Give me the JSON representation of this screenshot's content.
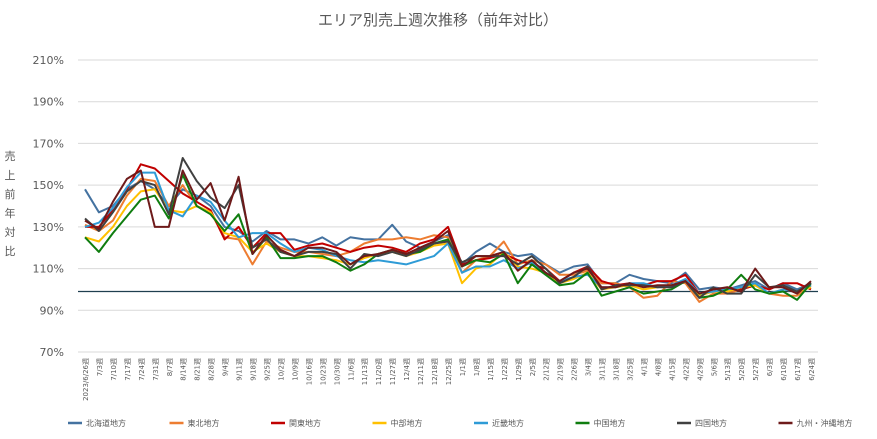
{
  "chart_data": {
    "type": "line",
    "title": "エリア別売上週次推移（前年対比）",
    "ylabel": "売上前年対比",
    "ylim": [
      70,
      210
    ],
    "yticks": [
      "70%",
      "90%",
      "110%",
      "130%",
      "150%",
      "170%",
      "190%",
      "210%"
    ],
    "grid": "horizontal",
    "legend": "bottom",
    "reference_line": {
      "value": 99,
      "color": "#1f3f4f"
    },
    "categories": [
      "2023/6/26週",
      "7/3週",
      "7/10週",
      "7/17週",
      "7/24週",
      "7/31週",
      "8/7週",
      "8/14週",
      "8/21週",
      "8/28週",
      "9/4週",
      "9/11週",
      "9/18週",
      "9/25週",
      "10/2週",
      "10/9週",
      "10/16週",
      "10/23週",
      "10/30週",
      "11/6週",
      "11/13週",
      "11/20週",
      "11/27週",
      "12/4週",
      "12/11週",
      "12/18週",
      "12/25週",
      "1/1週",
      "1/8週",
      "1/15週",
      "1/22週",
      "1/29週",
      "2/5週",
      "2/12週",
      "2/19週",
      "2/26週",
      "3/4週",
      "3/11週",
      "3/18週",
      "3/25週",
      "4/1週",
      "4/8週",
      "4/15週",
      "4/22週",
      "4/29週",
      "5/6週",
      "5/13週",
      "5/20週",
      "5/27週",
      "6/3週",
      "6/10週",
      "6/17週",
      "6/24週"
    ],
    "series": [
      {
        "name": "北海道地方",
        "color": "#4472a0",
        "values": [
          148,
          137,
          140,
          148,
          152,
          148,
          140,
          148,
          145,
          140,
          130,
          128,
          123,
          128,
          124,
          124,
          122,
          125,
          121,
          125,
          124,
          124,
          131,
          123,
          120,
          123,
          126,
          112,
          118,
          122,
          118,
          116,
          117,
          112,
          108,
          111,
          112,
          103,
          103,
          107,
          105,
          104,
          103,
          108,
          100,
          101,
          100,
          102,
          104,
          100,
          103,
          100,
          103
        ]
      },
      {
        "name": "東北地方",
        "color": "#ed7d31",
        "values": [
          131,
          128,
          133,
          145,
          153,
          152,
          140,
          150,
          140,
          137,
          125,
          124,
          112,
          123,
          120,
          118,
          118,
          117,
          116,
          118,
          122,
          124,
          124,
          125,
          124,
          126,
          125,
          108,
          114,
          116,
          123,
          112,
          114,
          112,
          107,
          107,
          109,
          103,
          103,
          101,
          96,
          97,
          104,
          103,
          94,
          98,
          98,
          100,
          102,
          98,
          97,
          97,
          102
        ]
      },
      {
        "name": "関東地方",
        "color": "#c00000",
        "values": [
          130,
          130,
          138,
          148,
          160,
          158,
          152,
          146,
          142,
          138,
          124,
          130,
          120,
          127,
          127,
          119,
          121,
          122,
          120,
          118,
          120,
          121,
          120,
          118,
          122,
          124,
          130,
          112,
          114,
          115,
          117,
          114,
          112,
          110,
          104,
          108,
          111,
          104,
          102,
          103,
          102,
          104,
          104,
          107,
          98,
          99,
          101,
          100,
          102,
          100,
          103,
          103,
          100
        ]
      },
      {
        "name": "中部地方",
        "color": "#ffc000",
        "values": [
          125,
          123,
          130,
          140,
          147,
          148,
          138,
          137,
          140,
          137,
          127,
          125,
          118,
          122,
          118,
          116,
          116,
          115,
          114,
          112,
          115,
          117,
          118,
          116,
          118,
          121,
          122,
          103,
          110,
          112,
          118,
          111,
          110,
          108,
          103,
          105,
          108,
          100,
          101,
          102,
          100,
          101,
          102,
          104,
          97,
          99,
          99,
          101,
          102,
          98,
          100,
          99,
          101
        ]
      },
      {
        "name": "近畿地方",
        "color": "#2e9bd6",
        "values": [
          130,
          132,
          139,
          149,
          156,
          156,
          138,
          135,
          145,
          142,
          133,
          125,
          127,
          127,
          122,
          118,
          120,
          119,
          116,
          114,
          113,
          114,
          113,
          112,
          114,
          116,
          122,
          108,
          111,
          111,
          114,
          110,
          113,
          108,
          104,
          106,
          107,
          101,
          101,
          103,
          103,
          101,
          102,
          105,
          98,
          99,
          100,
          101,
          103,
          98,
          100,
          99,
          102
        ]
      },
      {
        "name": "中国地方",
        "color": "#0f7d0f",
        "values": [
          125,
          118,
          127,
          135,
          143,
          145,
          134,
          155,
          140,
          136,
          128,
          136,
          117,
          125,
          115,
          115,
          116,
          116,
          113,
          109,
          112,
          117,
          119,
          117,
          118,
          122,
          124,
          111,
          114,
          113,
          117,
          103,
          112,
          107,
          102,
          103,
          108,
          97,
          99,
          101,
          98,
          99,
          100,
          104,
          96,
          97,
          100,
          107,
          100,
          98,
          99,
          95,
          103
        ]
      },
      {
        "name": "四国地方",
        "color": "#404040",
        "values": [
          134,
          128,
          137,
          147,
          152,
          150,
          136,
          163,
          152,
          144,
          139,
          150,
          120,
          124,
          118,
          116,
          118,
          118,
          117,
          110,
          117,
          116,
          118,
          116,
          119,
          122,
          123,
          113,
          116,
          116,
          116,
          112,
          116,
          110,
          103,
          106,
          111,
          100,
          102,
          102,
          102,
          101,
          101,
          104,
          96,
          101,
          98,
          98,
          107,
          101,
          102,
          99,
          103
        ]
      },
      {
        "name": "九州・沖縄地方",
        "color": "#6e1a1a",
        "values": [
          133,
          129,
          142,
          153,
          157,
          130,
          130,
          157,
          143,
          151,
          133,
          154,
          117,
          126,
          119,
          116,
          120,
          120,
          118,
          112,
          116,
          117,
          119,
          117,
          120,
          123,
          128,
          111,
          116,
          116,
          118,
          109,
          114,
          108,
          104,
          108,
          110,
          101,
          101,
          103,
          101,
          102,
          102,
          104,
          98,
          100,
          101,
          99,
          110,
          101,
          101,
          98,
          104
        ]
      }
    ]
  }
}
